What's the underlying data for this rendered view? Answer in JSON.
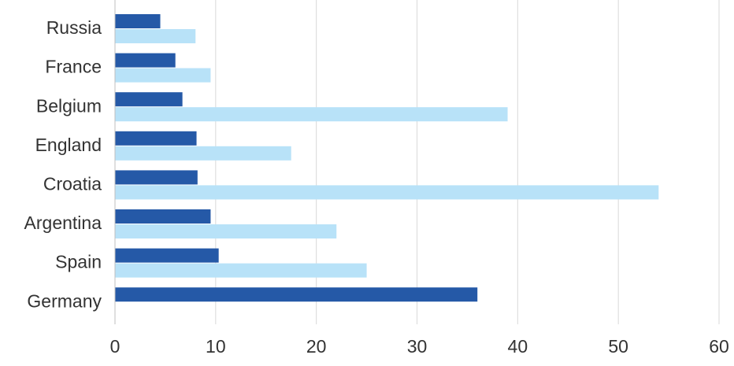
{
  "chart_data": {
    "type": "bar",
    "orientation": "horizontal",
    "categories": [
      "Russia",
      "France",
      "Belgium",
      "England",
      "Croatia",
      "Argentina",
      "Spain",
      "Germany"
    ],
    "series": [
      {
        "color": "#2559a7",
        "values": [
          4.5,
          6,
          6.7,
          8.1,
          8.2,
          9.5,
          10.3,
          36
        ]
      },
      {
        "color": "#b8e2f8",
        "values": [
          8,
          9.5,
          39,
          17.5,
          54,
          22,
          25,
          null
        ]
      }
    ],
    "xlim": [
      0,
      60
    ],
    "xticks": [
      0,
      10,
      20,
      30,
      40,
      50,
      60
    ],
    "grid": true,
    "legend": "none"
  }
}
